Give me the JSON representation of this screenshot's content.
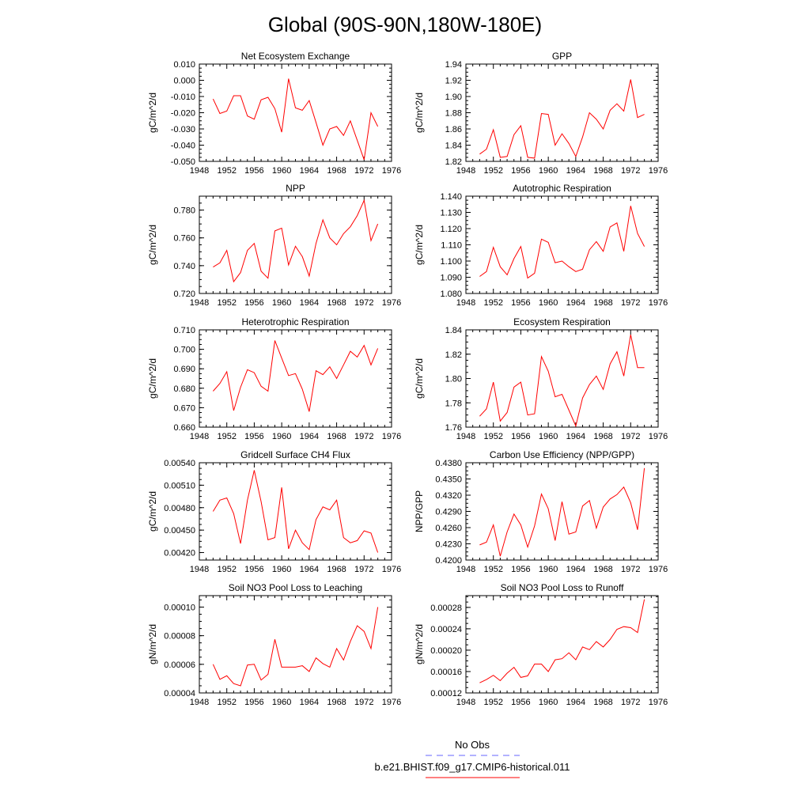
{
  "figure": {
    "title": "Global (90S-90N,180W-180E)"
  },
  "legend": {
    "items": [
      {
        "label": "No Obs",
        "color": "#6666ff",
        "dash": true
      },
      {
        "label": "b.e21.BHIST.f09_g17.CMIP6-historical.011",
        "color": "#ff0000",
        "dash": false
      }
    ]
  },
  "chart_data": [
    {
      "type": "line",
      "title": "Net Ecosystem Exchange",
      "ylabel": "gC/m^2/d",
      "xlim": [
        1948,
        1976
      ],
      "ylim": [
        -0.05,
        0.01
      ],
      "xticks": [
        1948,
        1952,
        1956,
        1960,
        1964,
        1968,
        1972,
        1976
      ],
      "yticks": [
        "0.010",
        "0.000",
        "-0.010",
        "-0.020",
        "-0.030",
        "-0.040",
        "-0.050"
      ],
      "x": [
        1950,
        1951,
        1952,
        1953,
        1954,
        1955,
        1956,
        1957,
        1958,
        1959,
        1960,
        1961,
        1962,
        1963,
        1964,
        1965,
        1966,
        1967,
        1968,
        1969,
        1970,
        1971,
        1972,
        1973,
        1974
      ],
      "series": [
        {
          "color": "#ff0000",
          "values": [
            -0.0115,
            -0.0205,
            -0.019,
            -0.0095,
            -0.0095,
            -0.022,
            -0.024,
            -0.012,
            -0.0105,
            -0.0175,
            -0.032,
            0.001,
            -0.017,
            -0.0185,
            -0.0125,
            -0.026,
            -0.04,
            -0.03,
            -0.0285,
            -0.034,
            -0.025,
            -0.037,
            -0.049,
            -0.02,
            -0.0285
          ]
        }
      ]
    },
    {
      "type": "line",
      "title": "GPP",
      "ylabel": "gC/m^2/d",
      "xlim": [
        1948,
        1976
      ],
      "ylim": [
        1.82,
        1.94
      ],
      "xticks": [
        1948,
        1952,
        1956,
        1960,
        1964,
        1968,
        1972,
        1976
      ],
      "yticks": [
        "1.94",
        "1.92",
        "1.90",
        "1.88",
        "1.86",
        "1.84",
        "1.82"
      ],
      "x": [
        1950,
        1951,
        1952,
        1953,
        1954,
        1955,
        1956,
        1957,
        1958,
        1959,
        1960,
        1961,
        1962,
        1963,
        1964,
        1965,
        1966,
        1967,
        1968,
        1969,
        1970,
        1971,
        1972,
        1973,
        1974
      ],
      "series": [
        {
          "color": "#ff0000",
          "values": [
            1.829,
            1.835,
            1.859,
            1.825,
            1.826,
            1.853,
            1.864,
            1.825,
            1.824,
            1.879,
            1.878,
            1.84,
            1.854,
            1.842,
            1.826,
            1.85,
            1.88,
            1.872,
            1.86,
            1.883,
            1.891,
            1.882,
            1.921,
            1.874,
            1.878
          ]
        }
      ]
    },
    {
      "type": "line",
      "title": "NPP",
      "ylabel": "gC/m^2/d",
      "xlim": [
        1948,
        1976
      ],
      "ylim": [
        0.72,
        0.79
      ],
      "xticks": [
        1948,
        1952,
        1956,
        1960,
        1964,
        1968,
        1972,
        1976
      ],
      "yticks": [
        "0.780",
        "0.760",
        "0.740",
        "0.720"
      ],
      "ytickvals": [
        0.78,
        0.76,
        0.74,
        0.72
      ],
      "x": [
        1950,
        1951,
        1952,
        1953,
        1954,
        1955,
        1956,
        1957,
        1958,
        1959,
        1960,
        1961,
        1962,
        1963,
        1964,
        1965,
        1966,
        1967,
        1968,
        1969,
        1970,
        1971,
        1972,
        1973,
        1974
      ],
      "series": [
        {
          "color": "#ff0000",
          "values": [
            0.739,
            0.742,
            0.751,
            0.7285,
            0.735,
            0.751,
            0.756,
            0.736,
            0.731,
            0.765,
            0.767,
            0.7405,
            0.754,
            0.7465,
            0.7325,
            0.756,
            0.773,
            0.76,
            0.755,
            0.763,
            0.768,
            0.776,
            0.787,
            0.758,
            0.77
          ]
        }
      ]
    },
    {
      "type": "line",
      "title": "Autotrophic Respiration",
      "ylabel": "gC/m^2/d",
      "xlim": [
        1948,
        1976
      ],
      "ylim": [
        1.08,
        1.14
      ],
      "xticks": [
        1948,
        1952,
        1956,
        1960,
        1964,
        1968,
        1972,
        1976
      ],
      "yticks": [
        "1.140",
        "1.130",
        "1.120",
        "1.110",
        "1.100",
        "1.090",
        "1.080"
      ],
      "x": [
        1950,
        1951,
        1952,
        1953,
        1954,
        1955,
        1956,
        1957,
        1958,
        1959,
        1960,
        1961,
        1962,
        1963,
        1964,
        1965,
        1966,
        1967,
        1968,
        1969,
        1970,
        1971,
        1972,
        1973,
        1974
      ],
      "series": [
        {
          "color": "#ff0000",
          "values": [
            1.0905,
            1.0935,
            1.1085,
            1.0965,
            1.0915,
            1.1015,
            1.109,
            1.0895,
            1.0925,
            1.1135,
            1.1115,
            1.099,
            1.1,
            1.0965,
            1.0935,
            1.095,
            1.107,
            1.112,
            1.106,
            1.121,
            1.1235,
            1.106,
            1.134,
            1.117,
            1.109
          ]
        }
      ]
    },
    {
      "type": "line",
      "title": "Heterotrophic Respiration",
      "ylabel": "gC/m^2/d",
      "xlim": [
        1948,
        1976
      ],
      "ylim": [
        0.66,
        0.71
      ],
      "xticks": [
        1948,
        1952,
        1956,
        1960,
        1964,
        1968,
        1972,
        1976
      ],
      "yticks": [
        "0.710",
        "0.700",
        "0.690",
        "0.680",
        "0.670",
        "0.660"
      ],
      "x": [
        1950,
        1951,
        1952,
        1953,
        1954,
        1955,
        1956,
        1957,
        1958,
        1959,
        1960,
        1961,
        1962,
        1963,
        1964,
        1965,
        1966,
        1967,
        1968,
        1969,
        1970,
        1971,
        1972,
        1973,
        1974
      ],
      "series": [
        {
          "color": "#ff0000",
          "values": [
            0.6785,
            0.6825,
            0.6885,
            0.6685,
            0.6805,
            0.6895,
            0.688,
            0.681,
            0.6785,
            0.7045,
            0.6955,
            0.6865,
            0.6875,
            0.6795,
            0.668,
            0.689,
            0.687,
            0.691,
            0.685,
            0.692,
            0.699,
            0.696,
            0.702,
            0.692,
            0.7005
          ]
        }
      ]
    },
    {
      "type": "line",
      "title": "Ecosystem Respiration",
      "ylabel": "gC/m^2/d",
      "xlim": [
        1948,
        1976
      ],
      "ylim": [
        1.76,
        1.84
      ],
      "xticks": [
        1948,
        1952,
        1956,
        1960,
        1964,
        1968,
        1972,
        1976
      ],
      "yticks": [
        "1.84",
        "1.82",
        "1.80",
        "1.78",
        "1.76"
      ],
      "x": [
        1950,
        1951,
        1952,
        1953,
        1954,
        1955,
        1956,
        1957,
        1958,
        1959,
        1960,
        1961,
        1962,
        1963,
        1964,
        1965,
        1966,
        1967,
        1968,
        1969,
        1970,
        1971,
        1972,
        1973,
        1974
      ],
      "series": [
        {
          "color": "#ff0000",
          "values": [
            1.769,
            1.775,
            1.797,
            1.765,
            1.772,
            1.793,
            1.797,
            1.77,
            1.771,
            1.818,
            1.806,
            1.785,
            1.787,
            1.774,
            1.761,
            1.784,
            1.795,
            1.802,
            1.791,
            1.812,
            1.822,
            1.802,
            1.836,
            1.809,
            1.809
          ]
        }
      ]
    },
    {
      "type": "line",
      "title": "Gridcell Surface CH4 Flux",
      "ylabel": "gC/m^2/d",
      "xlim": [
        1948,
        1976
      ],
      "ylim": [
        0.0041,
        0.0054
      ],
      "xticks": [
        1948,
        1952,
        1956,
        1960,
        1964,
        1968,
        1972,
        1976
      ],
      "yticks": [
        "0.00540",
        "0.00510",
        "0.00480",
        "0.00450",
        "0.00420"
      ],
      "ytickvals": [
        0.0054,
        0.0051,
        0.0048,
        0.0045,
        0.0042
      ],
      "x": [
        1950,
        1951,
        1952,
        1953,
        1954,
        1955,
        1956,
        1957,
        1958,
        1959,
        1960,
        1961,
        1962,
        1963,
        1964,
        1965,
        1966,
        1967,
        1968,
        1969,
        1970,
        1971,
        1972,
        1973,
        1974
      ],
      "series": [
        {
          "color": "#ff0000",
          "values": [
            0.00475,
            0.0049,
            0.00493,
            0.00472,
            0.00432,
            0.0049,
            0.0053,
            0.00488,
            0.00437,
            0.0044,
            0.00507,
            0.00425,
            0.0045,
            0.00433,
            0.00424,
            0.00464,
            0.00481,
            0.00477,
            0.0049,
            0.0044,
            0.00433,
            0.00436,
            0.00449,
            0.00446,
            0.0042
          ]
        }
      ]
    },
    {
      "type": "line",
      "title": "Carbon Use Efficiency (NPP/GPP)",
      "ylabel": "NPP/GPP",
      "xlim": [
        1948,
        1976
      ],
      "ylim": [
        0.42,
        0.438
      ],
      "xticks": [
        1948,
        1952,
        1956,
        1960,
        1964,
        1968,
        1972,
        1976
      ],
      "yticks": [
        "0.4380",
        "0.4350",
        "0.4320",
        "0.4290",
        "0.4260",
        "0.4230",
        "0.4200"
      ],
      "ytickvals": [
        0.438,
        0.435,
        0.432,
        0.429,
        0.426,
        0.423,
        0.42
      ],
      "x": [
        1950,
        1951,
        1952,
        1953,
        1954,
        1955,
        1956,
        1957,
        1958,
        1959,
        1960,
        1961,
        1962,
        1963,
        1964,
        1965,
        1966,
        1967,
        1968,
        1969,
        1970,
        1971,
        1972,
        1973,
        1974
      ],
      "series": [
        {
          "color": "#ff0000",
          "values": [
            0.4228,
            0.4233,
            0.4265,
            0.4207,
            0.4252,
            0.4285,
            0.4265,
            0.4224,
            0.4263,
            0.4322,
            0.4295,
            0.4236,
            0.4308,
            0.4248,
            0.4252,
            0.43,
            0.431,
            0.4259,
            0.4298,
            0.4313,
            0.4321,
            0.4335,
            0.4306,
            0.4256,
            0.437
          ]
        }
      ]
    },
    {
      "type": "line",
      "title": "Soil NO3 Pool Loss to Leaching",
      "ylabel": "gN/m^2/d",
      "xlim": [
        1948,
        1976
      ],
      "ylim": [
        4e-05,
        0.000108
      ],
      "xticks": [
        1948,
        1952,
        1956,
        1960,
        1964,
        1968,
        1972,
        1976
      ],
      "yticks": [
        "0.00010",
        "0.00008",
        "0.00006",
        "0.00004"
      ],
      "ytickvals": [
        0.0001,
        8e-05,
        6e-05,
        4e-05
      ],
      "x": [
        1950,
        1951,
        1952,
        1953,
        1954,
        1955,
        1956,
        1957,
        1958,
        1959,
        1960,
        1961,
        1962,
        1963,
        1964,
        1965,
        1966,
        1967,
        1968,
        1969,
        1970,
        1971,
        1972,
        1973,
        1974
      ],
      "series": [
        {
          "color": "#ff0000",
          "values": [
            6e-05,
            4.95e-05,
            5.2e-05,
            4.65e-05,
            4.5e-05,
            5.95e-05,
            6e-05,
            4.9e-05,
            5.3e-05,
            7.75e-05,
            5.8e-05,
            5.8e-05,
            5.8e-05,
            5.9e-05,
            5.5e-05,
            6.45e-05,
            6.05e-05,
            5.8e-05,
            7.1e-05,
            6.3e-05,
            7.6e-05,
            8.7e-05,
            8.3e-05,
            7.1e-05,
            0.0001
          ]
        }
      ]
    },
    {
      "type": "line",
      "title": "Soil NO3 Pool Loss to Runoff",
      "ylabel": "gN/m^2/d",
      "xlim": [
        1948,
        1976
      ],
      "ylim": [
        0.00012,
        0.000302
      ],
      "xticks": [
        1948,
        1952,
        1956,
        1960,
        1964,
        1968,
        1972,
        1976
      ],
      "yticks": [
        "0.00028",
        "0.00024",
        "0.00020",
        "0.00016",
        "0.00012"
      ],
      "ytickvals": [
        0.00028,
        0.00024,
        0.0002,
        0.00016,
        0.00012
      ],
      "x": [
        1950,
        1951,
        1952,
        1953,
        1954,
        1955,
        1956,
        1957,
        1958,
        1959,
        1960,
        1961,
        1962,
        1963,
        1964,
        1965,
        1966,
        1967,
        1968,
        1969,
        1970,
        1971,
        1972,
        1973,
        1974
      ],
      "series": [
        {
          "color": "#ff0000",
          "values": [
            0.000139,
            0.000145,
            0.000153,
            0.000143,
            0.000157,
            0.000168,
            0.000149,
            0.000152,
            0.000174,
            0.000174,
            0.00016,
            0.000182,
            0.000184,
            0.000195,
            0.000182,
            0.000206,
            0.000201,
            0.000216,
            0.000206,
            0.00022,
            0.000239,
            0.000244,
            0.000242,
            0.000233,
            0.000295
          ]
        }
      ]
    }
  ]
}
